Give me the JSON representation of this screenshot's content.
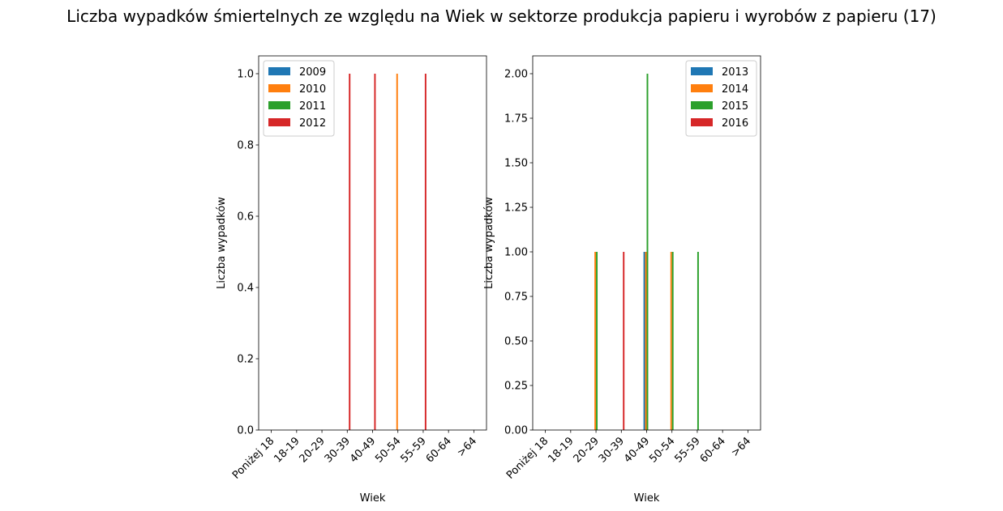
{
  "figure_title": "Liczba wypadków śmiertelnych ze względu na Wiek w sektorze produkcja papieru i wyrobów z papieru  (17)",
  "chart_data": [
    {
      "type": "bar",
      "xlabel": "Wiek",
      "ylabel": "Liczba wypadków",
      "categories": [
        "Poniżej 18",
        "18-19",
        "20-29",
        "30-39",
        "40-49",
        "50-54",
        "55-59",
        "60-64",
        ">64"
      ],
      "ylim": [
        0,
        1.05
      ],
      "yticks": [
        0.0,
        0.2,
        0.4,
        0.6,
        0.8,
        1.0
      ],
      "ytick_labels": [
        "0.0",
        "0.2",
        "0.4",
        "0.6",
        "0.8",
        "1.0"
      ],
      "legend_position": "top-left",
      "grid": false,
      "series": [
        {
          "name": "2009",
          "color": "#1f77b4",
          "values": [
            0,
            0,
            0,
            0,
            0,
            0,
            0,
            0,
            0
          ]
        },
        {
          "name": "2010",
          "color": "#ff7f0e",
          "values": [
            0,
            0,
            0,
            0,
            0,
            1,
            0,
            0,
            0
          ]
        },
        {
          "name": "2011",
          "color": "#2ca02c",
          "values": [
            0,
            0,
            0,
            0,
            0,
            0,
            0,
            0,
            0
          ]
        },
        {
          "name": "2012",
          "color": "#d62728",
          "values": [
            0,
            0,
            0,
            1,
            1,
            0,
            1,
            0,
            0
          ]
        }
      ]
    },
    {
      "type": "bar",
      "xlabel": "Wiek",
      "ylabel": "Liczba wypadków",
      "categories": [
        "Poniżej 18",
        "18-19",
        "20-29",
        "30-39",
        "40-49",
        "50-54",
        "55-59",
        "60-64",
        ">64"
      ],
      "ylim": [
        0,
        2.1
      ],
      "yticks": [
        0.0,
        0.25,
        0.5,
        0.75,
        1.0,
        1.25,
        1.5,
        1.75,
        2.0
      ],
      "ytick_labels": [
        "0.00",
        "0.25",
        "0.50",
        "0.75",
        "1.00",
        "1.25",
        "1.50",
        "1.75",
        "2.00"
      ],
      "legend_position": "top-right",
      "grid": false,
      "series": [
        {
          "name": "2013",
          "color": "#1f77b4",
          "values": [
            0,
            0,
            0,
            0,
            1,
            0,
            0,
            0,
            0
          ]
        },
        {
          "name": "2014",
          "color": "#ff7f0e",
          "values": [
            0,
            0,
            1,
            0,
            1,
            1,
            0,
            0,
            0
          ]
        },
        {
          "name": "2015",
          "color": "#2ca02c",
          "values": [
            0,
            0,
            1,
            0,
            2,
            1,
            1,
            0,
            0
          ]
        },
        {
          "name": "2016",
          "color": "#d62728",
          "values": [
            0,
            0,
            0,
            1,
            0,
            0,
            0,
            0,
            0
          ]
        }
      ]
    }
  ]
}
